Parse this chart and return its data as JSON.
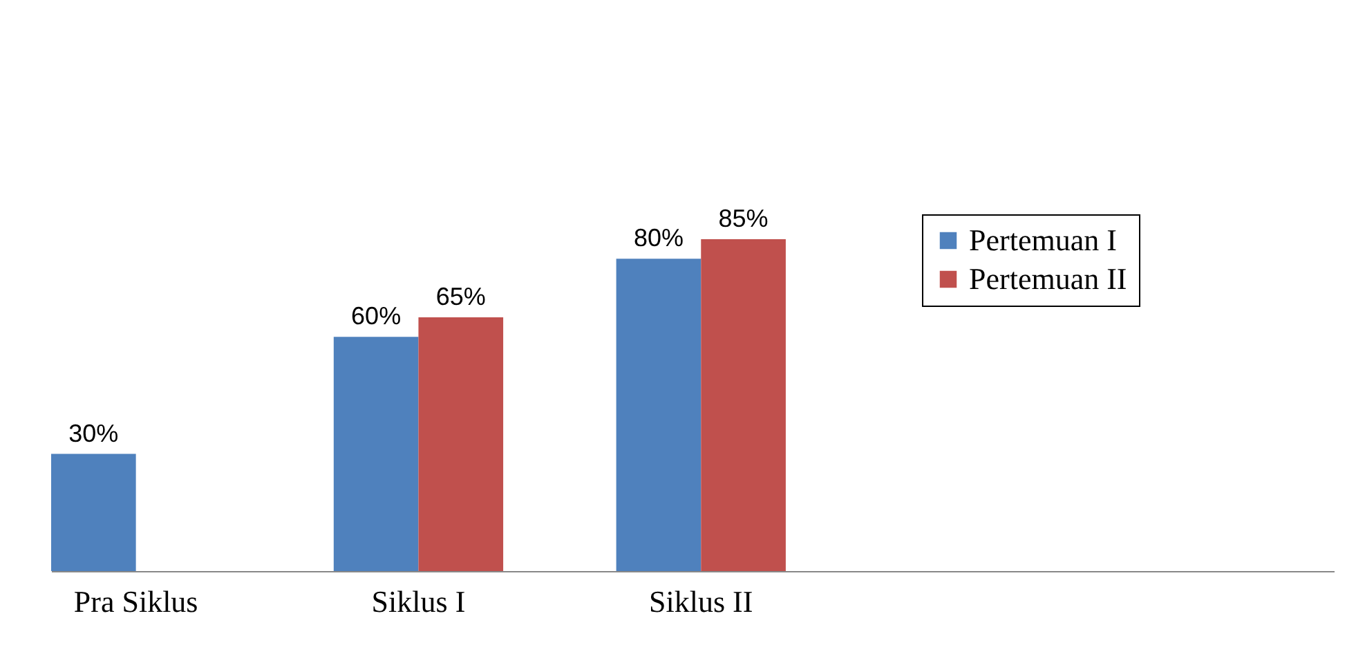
{
  "chart_data": {
    "type": "bar",
    "categories": [
      "Pra Siklus",
      "Siklus I",
      "Siklus II"
    ],
    "series": [
      {
        "name": "Pertemuan I",
        "color": "#4f81bd",
        "values": [
          30,
          60,
          80
        ],
        "value_labels": [
          "30%",
          "60%",
          "80%"
        ]
      },
      {
        "name": "Pertemuan II",
        "color": "#c0504d",
        "values": [
          null,
          65,
          85
        ],
        "value_labels": [
          null,
          "65%",
          "85%"
        ]
      }
    ],
    "legend": "right",
    "grid": false
  }
}
